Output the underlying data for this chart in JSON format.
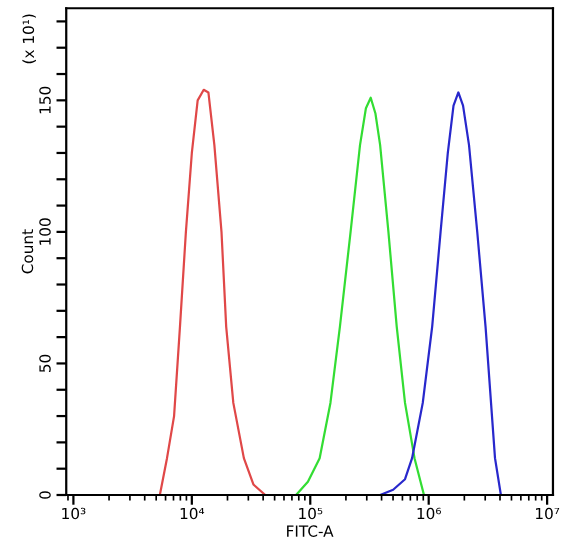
{
  "chart_data": {
    "type": "line",
    "xlabel": "FITC-A",
    "ylabel": "Count",
    "annotations": [
      "(x 10¹)"
    ],
    "log": "x",
    "grid": false,
    "legend": false,
    "xlim": [
      870,
      11200000
    ],
    "xticks": [
      {
        "value": 1000,
        "label": "10³"
      },
      {
        "value": 10000,
        "label": "10⁴"
      },
      {
        "value": 100000,
        "label": "10⁵"
      },
      {
        "value": 1000000,
        "label": "10⁶"
      },
      {
        "value": 10000000,
        "label": "10⁷"
      }
    ],
    "ylim": [
      0,
      185
    ],
    "yticks": [
      0,
      {
        "value": 10,
        "label": null
      },
      {
        "value": 20,
        "label": null
      },
      {
        "value": 30,
        "label": null
      },
      {
        "value": 40,
        "label": null
      },
      50,
      {
        "value": 60,
        "label": null
      },
      {
        "value": 70,
        "label": null
      },
      {
        "value": 80,
        "label": null
      },
      {
        "value": 90,
        "label": null
      },
      100,
      {
        "value": 110,
        "label": null
      },
      {
        "value": 120,
        "label": null
      },
      {
        "value": 130,
        "label": null
      },
      {
        "value": 140,
        "label": null
      },
      150,
      {
        "value": 160,
        "label": null
      },
      {
        "value": 170,
        "label": null
      },
      {
        "value": 180,
        "label": null
      }
    ],
    "series": [
      {
        "color": "#e04848",
        "x": [
          5370,
          6170,
          7080,
          7940,
          8910,
          10000,
          11200,
          12600,
          13800,
          15500,
          17800,
          19500,
          22400,
          27500,
          33100,
          41700
        ],
        "values": [
          0,
          14,
          30,
          64,
          100,
          130,
          150,
          154,
          153,
          133,
          100,
          64,
          35,
          14,
          4,
          0
        ]
      },
      {
        "color": "#33dd33",
        "x": [
          75900,
          95500,
          120000,
          148000,
          178000,
          219000,
          263000,
          295000,
          324000,
          355000,
          389000,
          457000,
          537000,
          631000,
          759000,
          912000
        ],
        "values": [
          0,
          5,
          14,
          35,
          64,
          100,
          133,
          147,
          151,
          145,
          133,
          100,
          64,
          35,
          14,
          0
        ]
      },
      {
        "color": "#2828cc",
        "x": [
          389000,
          501000,
          631000,
          724000,
          891000,
          1070000,
          1260000,
          1450000,
          1620000,
          1780000,
          1950000,
          2190000,
          2570000,
          3020000,
          3630000,
          4070000
        ],
        "values": [
          0,
          2,
          6,
          14,
          35,
          64,
          100,
          130,
          148,
          153,
          148,
          133,
          100,
          64,
          14,
          0
        ]
      }
    ]
  }
}
